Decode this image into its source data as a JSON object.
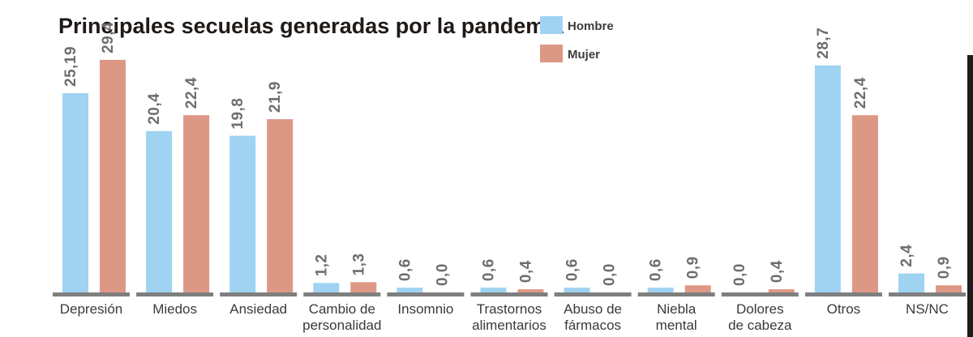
{
  "chart_data": {
    "type": "bar",
    "title": "Principales secuelas generadas por la pandemia",
    "categories": [
      "Depresión",
      "Miedos",
      "Ansiedad",
      "Cambio de personalidad",
      "Insomnio",
      "Trastornos alimentarios",
      "Abuso de fármacos",
      "Niebla mental",
      "Dolores de cabeza",
      "Otros",
      "NS/NC"
    ],
    "category_lines": [
      [
        "Depresión"
      ],
      [
        "Miedos"
      ],
      [
        "Ansiedad"
      ],
      [
        "Cambio de",
        "personalidad"
      ],
      [
        "Insomnio"
      ],
      [
        "Trastornos",
        "alimentarios"
      ],
      [
        "Abuso de",
        "fármacos"
      ],
      [
        "Niebla",
        "mental"
      ],
      [
        "Dolores",
        "de cabeza"
      ],
      [
        "Otros"
      ],
      [
        "NS/NC"
      ]
    ],
    "series": [
      {
        "name": "Hombre",
        "color": "#9fd3f1",
        "values": [
          25.19,
          20.4,
          19.8,
          1.2,
          0.6,
          0.6,
          0.6,
          0.6,
          0.0,
          28.7,
          2.4
        ],
        "labels": [
          "25,19",
          "20,4",
          "19,8",
          "1,2",
          "0,6",
          "0,6",
          "0,6",
          "0,6",
          "0,0",
          "28,7",
          "2,4"
        ]
      },
      {
        "name": "Mujer",
        "color": "#dd9885",
        "values": [
          29.4,
          22.4,
          21.9,
          1.3,
          0.0,
          0.4,
          0.0,
          0.9,
          0.4,
          22.4,
          0.9
        ],
        "labels": [
          "29,4",
          "22,4",
          "21,9",
          "1,3",
          "0,0",
          "0,4",
          "0,0",
          "0,9",
          "0,4",
          "22,4",
          "0,9"
        ]
      }
    ],
    "ylim": [
      0,
      30
    ],
    "legend_position": "top-center",
    "grid": false
  }
}
